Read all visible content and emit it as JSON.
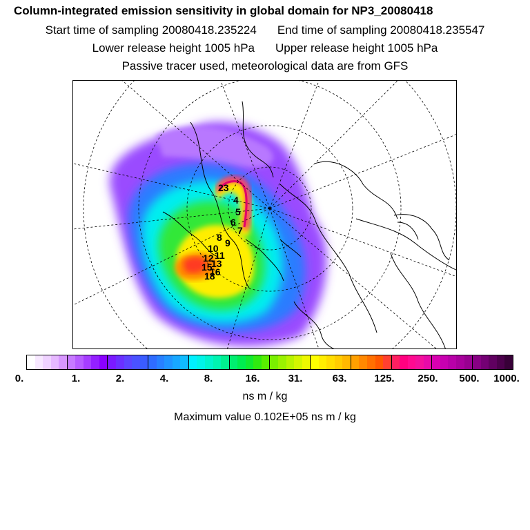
{
  "header": {
    "title": "Column-integrated emission sensitivity in global domain for NP3_20080418",
    "start_label": "Start time of sampling 20080418.235224",
    "end_label": "End time of sampling 20080418.235547",
    "lower_label": "Lower release height 1005 hPa",
    "upper_label": "Upper release height 1005 hPa",
    "info_line": "Passive tracer used, meteorological data are from GFS"
  },
  "map": {
    "projection": "polar stereographic (north pole)",
    "contour_labels": [
      "23",
      "4",
      "5",
      "6",
      "7",
      "8",
      "9",
      "10",
      "11",
      "12",
      "13",
      "15",
      "16",
      "18"
    ]
  },
  "legend": {
    "tick_labels": [
      "0.",
      "1.",
      "2.",
      "4.",
      "8.",
      "16.",
      "31.",
      "63.",
      "125.",
      "250.",
      "500.",
      "1000."
    ],
    "unit": "ns m / kg",
    "colors": [
      "#ffffff",
      "#f7e8ff",
      "#efd2ff",
      "#e6b8ff",
      "#d897ff",
      "#c77aff",
      "#b75cff",
      "#a63dff",
      "#9420ff",
      "#8a00ff",
      "#7a1aff",
      "#6a30ff",
      "#5c44ff",
      "#4a52ff",
      "#3a5cff",
      "#2f6cff",
      "#2880ff",
      "#2094ff",
      "#18a8ff",
      "#10bcff",
      "#00f0ff",
      "#00f4e8",
      "#00f4cc",
      "#00f4b0",
      "#00f090",
      "#00ee70",
      "#00ec50",
      "#10ea30",
      "#30ea10",
      "#58ee00",
      "#7af000",
      "#9af200",
      "#b8f400",
      "#d4f600",
      "#eef800",
      "#ffff00",
      "#ffee00",
      "#ffdd00",
      "#ffcc00",
      "#ffb800",
      "#ffa000",
      "#ff8800",
      "#ff7000",
      "#ff5800",
      "#ff4030",
      "#ff2060",
      "#ff0080",
      "#ff0a90",
      "#f4109c",
      "#e80aa8",
      "#d800b0",
      "#c800b0",
      "#b800a8",
      "#a8009c",
      "#980090",
      "#880084",
      "#740074",
      "#600060",
      "#4c004c",
      "#380038"
    ]
  },
  "footer": {
    "max_value_label": "Maximum value  0.102E+05 ns m / kg"
  }
}
